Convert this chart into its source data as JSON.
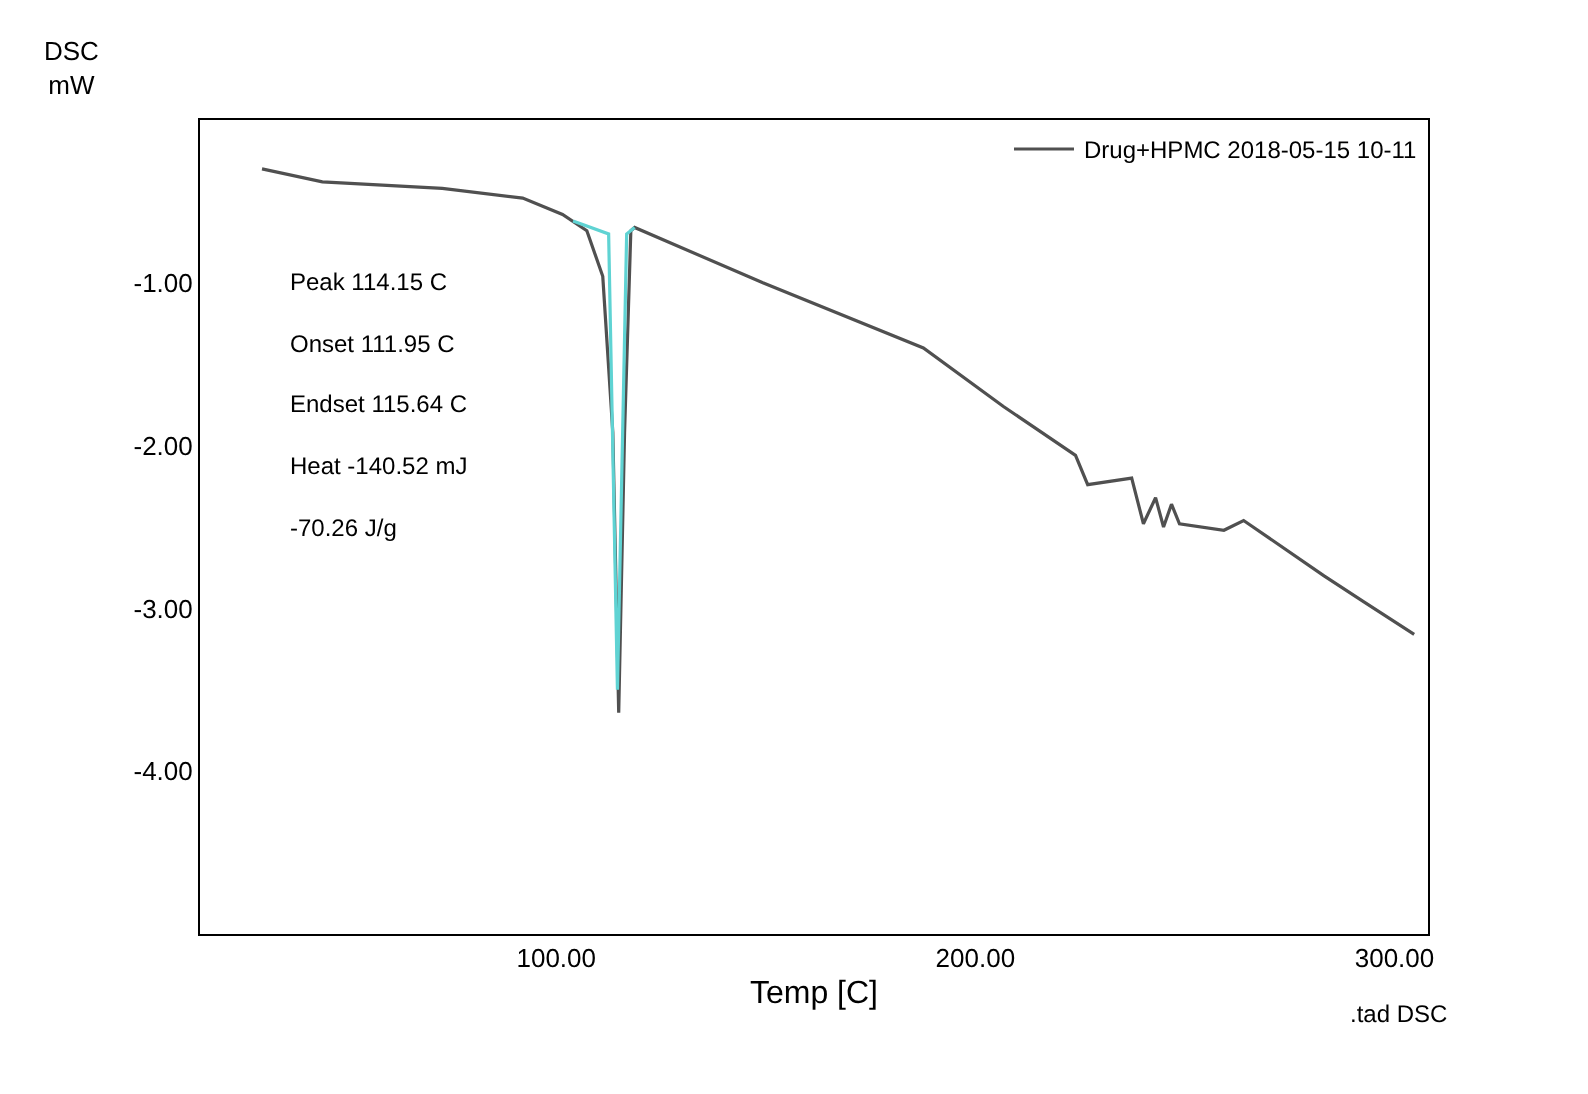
{
  "chart_data": {
    "type": "line",
    "ylabel": "DSC\nmW",
    "xlabel": "Temp [C]",
    "annotations": [
      "Peak 114.15 C",
      "Onset 111.95 C",
      "Endset 115.64 C",
      "Heat -140.52 mJ",
      "-70.26 J/g",
      ".tad DSC"
    ],
    "xlim": [
      15,
      308
    ],
    "xticks": [
      {
        "value": 100,
        "label": "100.00"
      },
      {
        "value": 200,
        "label": "200.00"
      },
      {
        "value": 300,
        "label": "300.00"
      }
    ],
    "ylim": [
      -5,
      0
    ],
    "yticks": [
      {
        "value": -1,
        "label": "-1.00"
      },
      {
        "value": -2,
        "label": "-2.00"
      },
      {
        "value": -3,
        "label": "-3.00"
      },
      {
        "value": -4,
        "label": "-4.00"
      }
    ],
    "grid": false,
    "legend": "top right",
    "marker": "none",
    "line_style": "solid",
    "series": [
      {
        "name": "Drug+HPMC 2018-05-15 10-11",
        "color": "#505050",
        "x": [
          29.8,
          44.2,
          72.8,
          92,
          101.5,
          107.3,
          111.1,
          113.5,
          114.9,
          116.3,
          117.8,
          118.7,
          149.3,
          187.6,
          206.7,
          223.9,
          226.8,
          237.3,
          240.1,
          243,
          244.9,
          246.8,
          248.7,
          259.3,
          264,
          283.2,
          292.7,
          304.7
        ],
        "values": [
          -0.3,
          -0.38,
          -0.42,
          -0.48,
          -0.58,
          -0.68,
          -0.96,
          -1.92,
          -3.64,
          -1.92,
          -0.68,
          -0.66,
          -1.0,
          -1.4,
          -1.76,
          -2.06,
          -2.24,
          -2.2,
          -2.48,
          -2.32,
          -2.5,
          -2.36,
          -2.48,
          -2.52,
          -2.46,
          -2.8,
          -2.96,
          -3.16
        ]
      },
      {
        "color": "#5fd3d3",
        "x": [
          104,
          112.5,
          114.6,
          116.8,
          118.7
        ],
        "values": [
          -0.62,
          -0.7,
          -3.5,
          -0.7,
          -0.66
        ]
      }
    ]
  }
}
